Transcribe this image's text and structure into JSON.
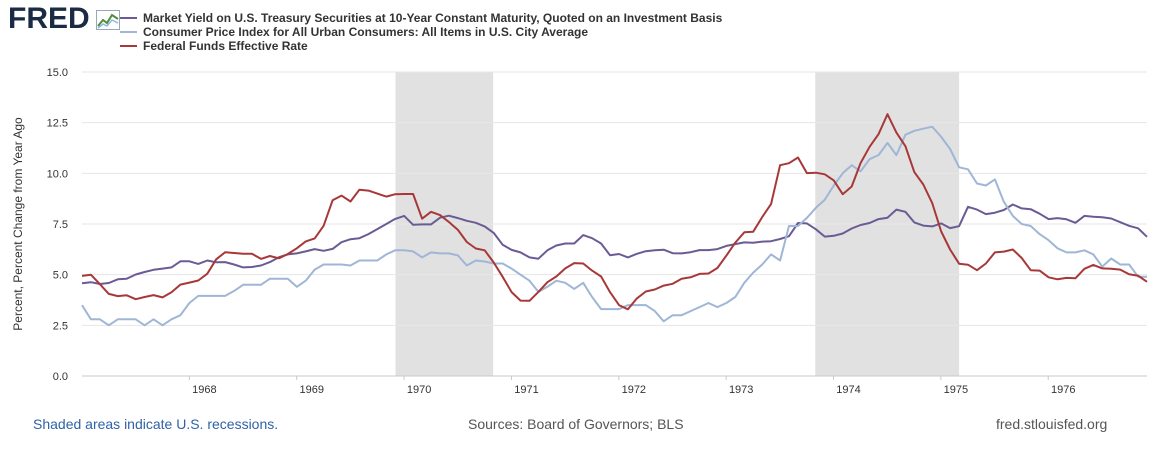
{
  "brand": {
    "logo_text": "FRED",
    "logo_icon": "line-chart-icon"
  },
  "colors": {
    "treasury": "#6b5b95",
    "cpi": "#9fb6d6",
    "fedfunds": "#a83838",
    "recession": "#e1e1e1",
    "grid": "#e6e6e6",
    "brand": "#1b2b44",
    "link": "#2f62a8"
  },
  "footer": {
    "note": "Shaded areas indicate U.S. recessions.",
    "source": "Sources: Board of Governors; BLS",
    "url": "fred.stlouisfed.org"
  },
  "chart_data": {
    "type": "line",
    "title": "",
    "xlabel": "",
    "ylabel": "Percent, Percent Change from Year Ago",
    "x_ticks": [
      "1968",
      "1969",
      "1970",
      "1971",
      "1972",
      "1973",
      "1974",
      "1975",
      "1976"
    ],
    "y_ticks": [
      "0.0",
      "2.5",
      "5.0",
      "7.5",
      "10.0",
      "12.5",
      "15.0"
    ],
    "ylim": [
      0,
      15
    ],
    "xlim": [
      1967.0,
      1976.92
    ],
    "grid": true,
    "legend_position": "top",
    "recessions": [
      [
        1969.92,
        1970.83
      ],
      [
        1973.83,
        1975.17
      ]
    ],
    "series": [
      {
        "name": "Market Yield on U.S. Treasury Securities at 10-Year Constant Maturity, Quoted on an Investment Basis",
        "color": "#6b5b95",
        "values": [
          4.58,
          4.63,
          4.54,
          4.59,
          4.77,
          4.8,
          5.01,
          5.13,
          5.24,
          5.3,
          5.36,
          5.66,
          5.66,
          5.53,
          5.7,
          5.61,
          5.62,
          5.5,
          5.36,
          5.38,
          5.45,
          5.62,
          5.86,
          6.0,
          6.05,
          6.15,
          6.26,
          6.18,
          6.27,
          6.6,
          6.75,
          6.8,
          7.0,
          7.25,
          7.5,
          7.75,
          7.9,
          7.46,
          7.48,
          7.48,
          7.81,
          7.91,
          7.79,
          7.66,
          7.56,
          7.38,
          7.06,
          6.48,
          6.22,
          6.1,
          5.85,
          5.79,
          6.2,
          6.44,
          6.54,
          6.54,
          6.95,
          6.8,
          6.54,
          5.96,
          6.02,
          5.85,
          6.03,
          6.16,
          6.2,
          6.23,
          6.06,
          6.05,
          6.11,
          6.21,
          6.21,
          6.26,
          6.42,
          6.51,
          6.59,
          6.57,
          6.63,
          6.65,
          6.76,
          6.9,
          7.55,
          7.53,
          7.24,
          6.88,
          6.92,
          7.03,
          7.28,
          7.45,
          7.55,
          7.74,
          7.81,
          8.21,
          8.1,
          7.58,
          7.42,
          7.38,
          7.53,
          7.3,
          7.39,
          8.35,
          8.21,
          7.99,
          8.06,
          8.19,
          8.46,
          8.27,
          8.23,
          8.01,
          7.74,
          7.79,
          7.73,
          7.56,
          7.9,
          7.86,
          7.83,
          7.77,
          7.59,
          7.41,
          7.29,
          6.87
        ]
      },
      {
        "name": "Consumer Price Index for All Urban Consumers: All Items in U.S. City Average",
        "color": "#9fb6d6",
        "values": [
          3.5,
          2.8,
          2.8,
          2.5,
          2.8,
          2.8,
          2.8,
          2.5,
          2.8,
          2.5,
          2.8,
          3.0,
          3.6,
          3.95,
          3.95,
          3.95,
          3.95,
          4.2,
          4.5,
          4.5,
          4.5,
          4.8,
          4.8,
          4.8,
          4.4,
          4.7,
          5.25,
          5.5,
          5.5,
          5.5,
          5.45,
          5.7,
          5.7,
          5.7,
          6.0,
          6.2,
          6.2,
          6.15,
          5.85,
          6.1,
          6.05,
          6.05,
          5.95,
          5.45,
          5.7,
          5.65,
          5.55,
          5.55,
          5.3,
          5.0,
          4.7,
          4.15,
          4.4,
          4.7,
          4.6,
          4.3,
          4.6,
          3.9,
          3.3,
          3.3,
          3.3,
          3.5,
          3.5,
          3.5,
          3.2,
          2.7,
          3.0,
          3.0,
          3.2,
          3.4,
          3.6,
          3.4,
          3.6,
          3.9,
          4.6,
          5.1,
          5.5,
          6.0,
          5.7,
          7.4,
          7.4,
          7.8,
          8.3,
          8.7,
          9.4,
          10.0,
          10.4,
          10.1,
          10.7,
          10.9,
          11.5,
          10.9,
          11.9,
          12.1,
          12.2,
          12.3,
          11.8,
          11.2,
          10.3,
          10.2,
          9.5,
          9.4,
          9.7,
          8.6,
          7.9,
          7.5,
          7.4,
          7.0,
          6.7,
          6.3,
          6.1,
          6.1,
          6.2,
          6.0,
          5.4,
          5.8,
          5.5,
          5.5,
          4.9,
          4.9
        ]
      },
      {
        "name": "Federal Funds Effective Rate",
        "color": "#a83838",
        "values": [
          4.94,
          5.0,
          4.53,
          4.05,
          3.94,
          3.98,
          3.79,
          3.9,
          3.99,
          3.88,
          4.13,
          4.51,
          4.61,
          4.71,
          5.05,
          5.76,
          6.11,
          6.07,
          6.03,
          6.03,
          5.78,
          5.92,
          5.81,
          6.02,
          6.3,
          6.64,
          6.79,
          7.41,
          8.67,
          8.9,
          8.61,
          9.19,
          9.15,
          9.0,
          8.85,
          8.97,
          8.98,
          8.98,
          7.76,
          8.1,
          7.94,
          7.6,
          7.21,
          6.61,
          6.29,
          6.2,
          5.6,
          4.9,
          4.14,
          3.72,
          3.71,
          4.15,
          4.63,
          4.91,
          5.31,
          5.57,
          5.55,
          5.2,
          4.91,
          4.14,
          3.5,
          3.29,
          3.83,
          4.17,
          4.27,
          4.46,
          4.55,
          4.8,
          4.87,
          5.04,
          5.06,
          5.33,
          5.94,
          6.58,
          7.09,
          7.12,
          7.84,
          8.49,
          10.4,
          10.5,
          10.78,
          10.01,
          10.03,
          9.95,
          9.65,
          8.97,
          9.35,
          10.51,
          11.31,
          11.93,
          12.92,
          12.01,
          11.34,
          10.06,
          9.45,
          8.53,
          7.13,
          6.24,
          5.54,
          5.49,
          5.22,
          5.55,
          6.1,
          6.14,
          6.24,
          5.82,
          5.22,
          5.2,
          4.87,
          4.77,
          4.84,
          4.82,
          5.29,
          5.48,
          5.31,
          5.29,
          5.25,
          5.02,
          4.95,
          4.65
        ]
      }
    ]
  }
}
